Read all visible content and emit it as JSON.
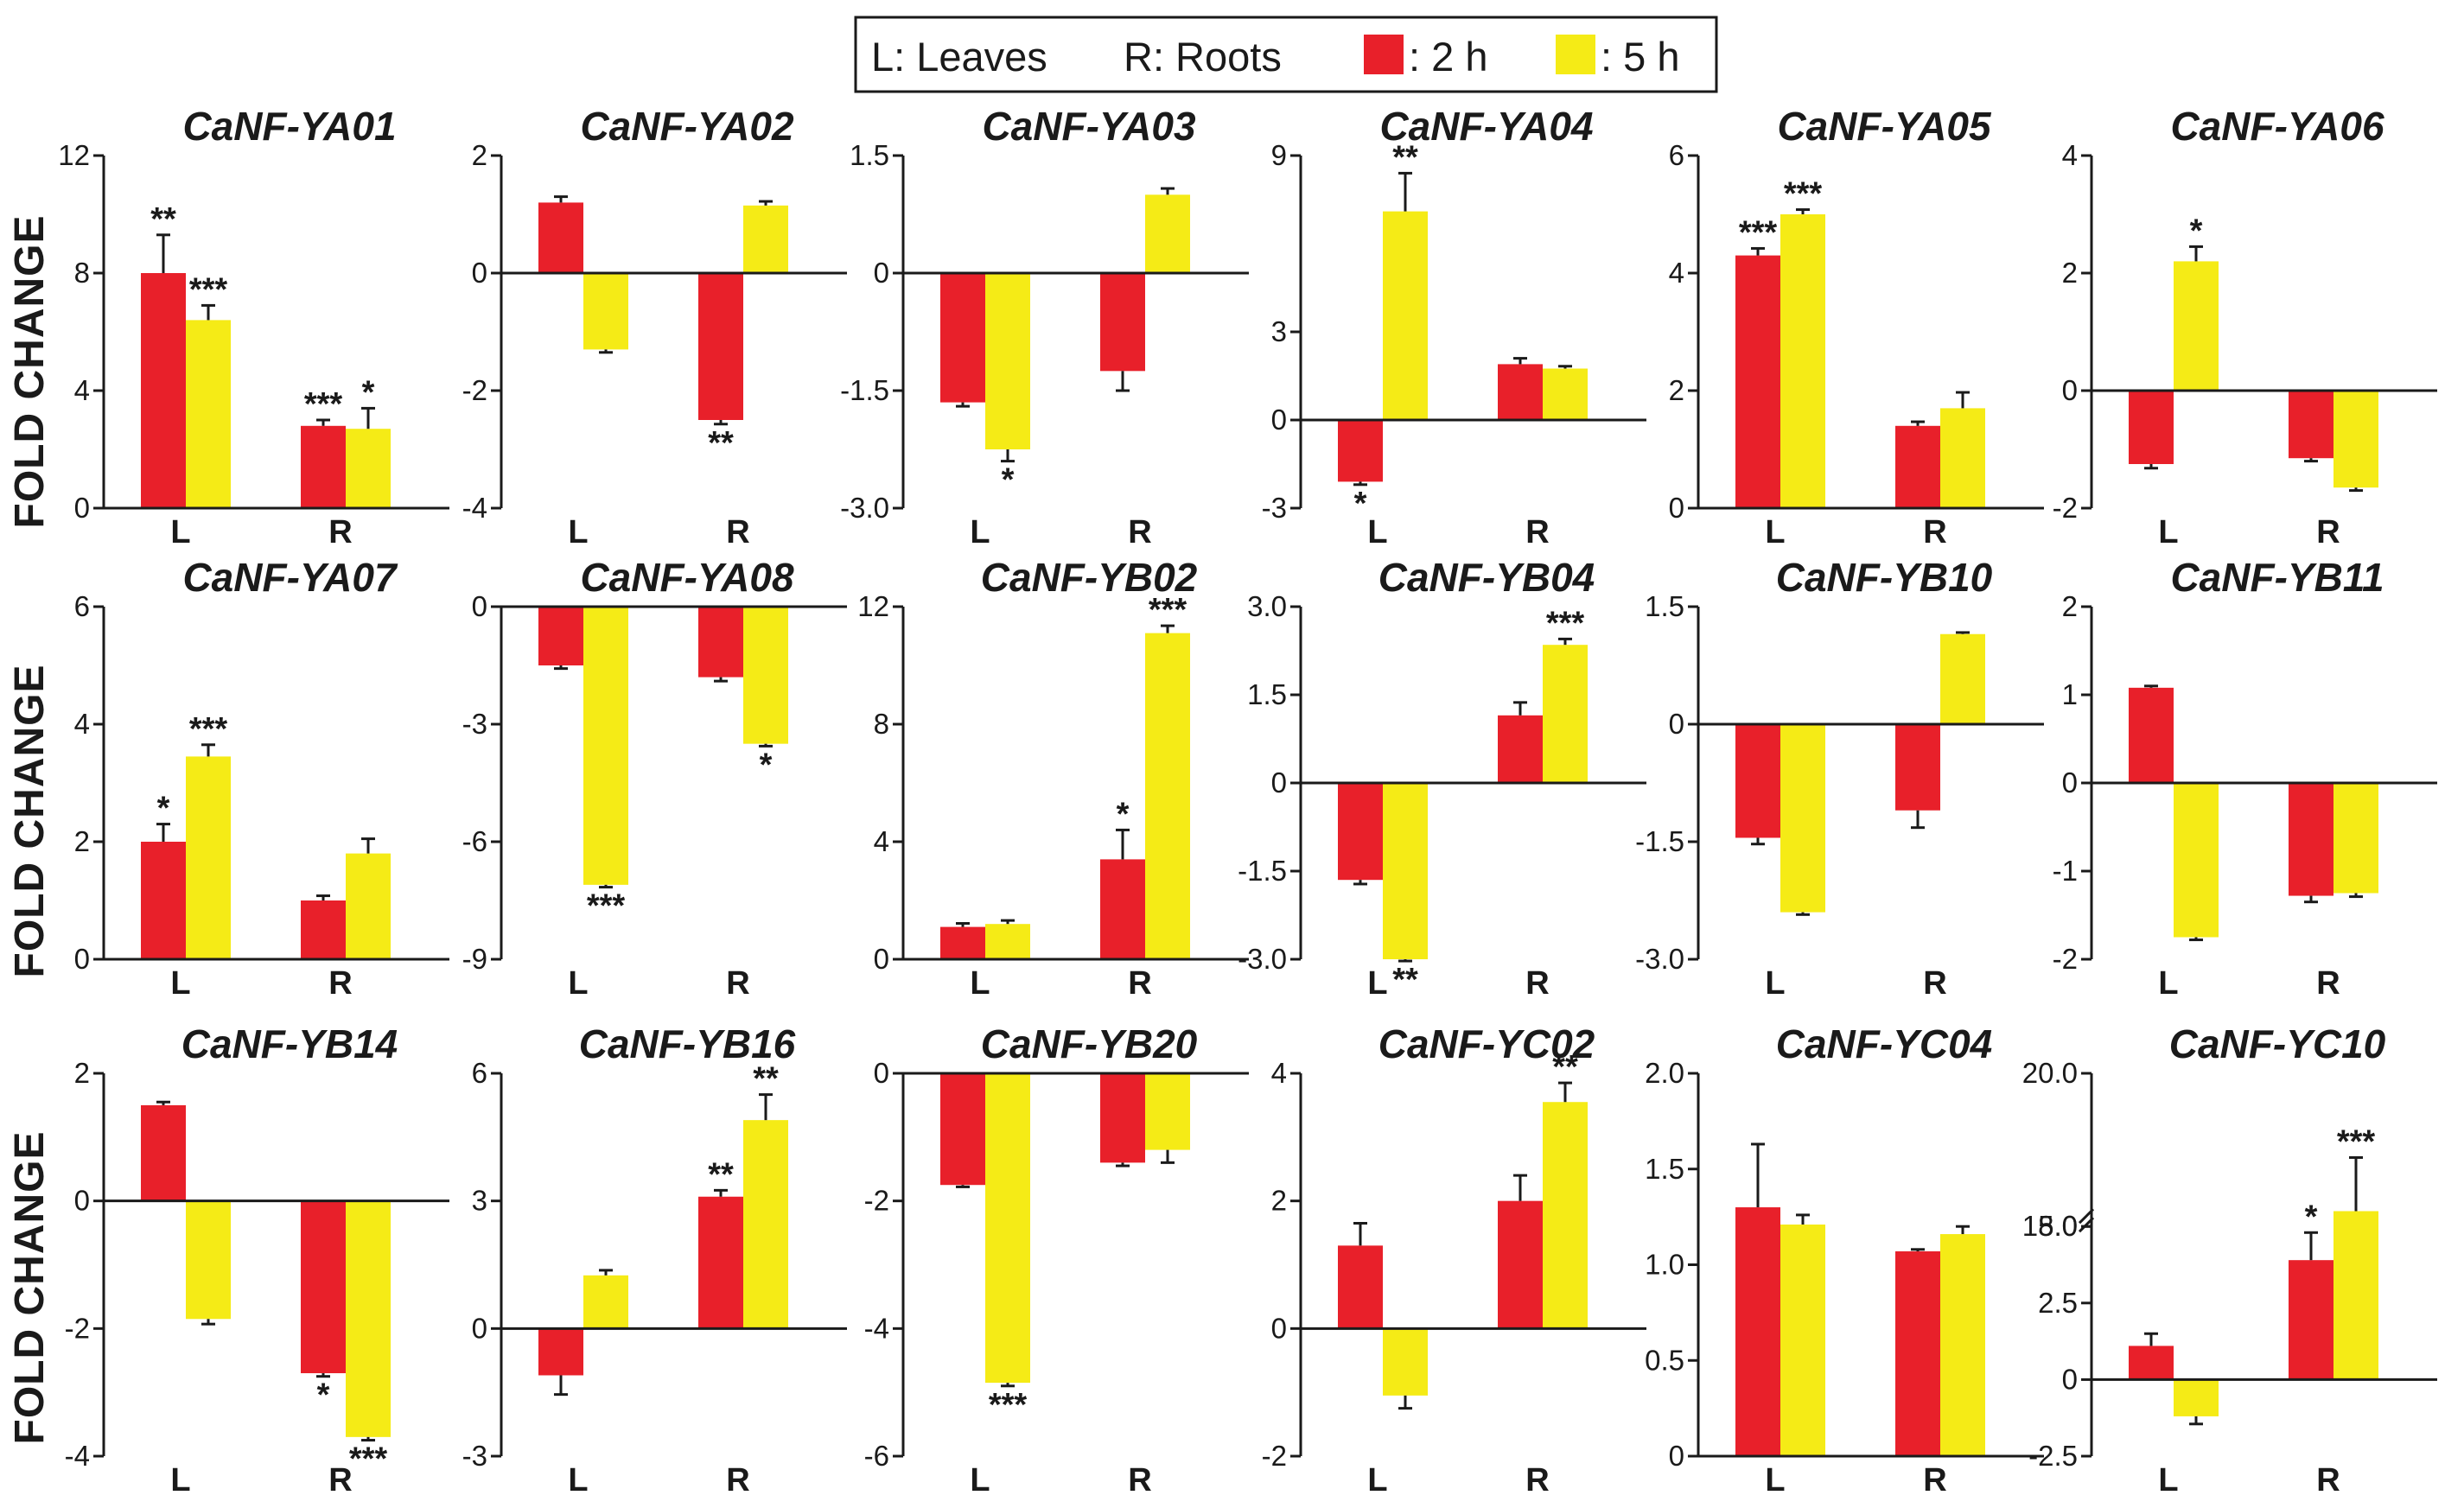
{
  "legend": {
    "leaves": "L: Leaves",
    "roots": "R: Roots",
    "series_2h": ": 2 h",
    "series_5h": ": 5 h"
  },
  "ylabel": "FOLD CHANGE",
  "colors": {
    "h2": "#e8202a",
    "h5": "#f5eb16"
  },
  "chart_data": [
    {
      "type": "bar",
      "title": "CaNF-YA01",
      "categories": [
        "L",
        "R"
      ],
      "ylim": [
        0,
        12
      ],
      "ticks": [
        "0",
        "4",
        "8",
        "12"
      ],
      "series": [
        {
          "name": "2 h",
          "values": [
            8.0,
            2.8
          ],
          "errors": [
            1.3,
            0.2
          ],
          "sig": [
            "**",
            "***"
          ]
        },
        {
          "name": "5 h",
          "values": [
            6.4,
            2.7
          ],
          "errors": [
            0.5,
            0.7
          ],
          "sig": [
            "***",
            "*"
          ]
        }
      ]
    },
    {
      "type": "bar",
      "title": "CaNF-YA02",
      "categories": [
        "L",
        "R"
      ],
      "ylim": [
        -4,
        2
      ],
      "ticks": [
        "-4",
        "-2",
        "0",
        "2"
      ],
      "series": [
        {
          "name": "2 h",
          "values": [
            1.2,
            -2.5
          ],
          "errors": [
            0.1,
            0.07
          ],
          "sig": [
            "",
            "**"
          ]
        },
        {
          "name": "5 h",
          "values": [
            -1.3,
            1.15
          ],
          "errors": [
            0.05,
            0.07
          ],
          "sig": [
            "",
            ""
          ]
        }
      ]
    },
    {
      "type": "bar",
      "title": "CaNF-YA03",
      "categories": [
        "L",
        "R"
      ],
      "ylim": [
        -3,
        1.5
      ],
      "ticks": [
        "-3.0",
        "-1.5",
        "0",
        "1.5"
      ],
      "series": [
        {
          "name": "2 h",
          "values": [
            -1.65,
            -1.25
          ],
          "errors": [
            0.05,
            0.25
          ],
          "sig": [
            "",
            ""
          ]
        },
        {
          "name": "5 h",
          "values": [
            -2.25,
            1.0
          ],
          "errors": [
            0.15,
            0.08
          ],
          "sig": [
            "*",
            ""
          ]
        }
      ]
    },
    {
      "type": "bar",
      "title": "CaNF-YA04",
      "categories": [
        "L",
        "R"
      ],
      "ylim": [
        -3,
        9
      ],
      "ticks": [
        "-3",
        "0",
        "3",
        "9"
      ],
      "series": [
        {
          "name": "2 h",
          "values": [
            -2.1,
            1.9
          ],
          "errors": [
            0.1,
            0.2
          ],
          "sig": [
            "*",
            ""
          ]
        },
        {
          "name": "5 h",
          "values": [
            7.1,
            1.75
          ],
          "errors": [
            1.3,
            0.08
          ],
          "sig": [
            "**",
            ""
          ]
        }
      ]
    },
    {
      "type": "bar",
      "title": "CaNF-YA05",
      "categories": [
        "L",
        "R"
      ],
      "ylim": [
        0,
        6
      ],
      "ticks": [
        "0",
        "2",
        "4",
        "6"
      ],
      "series": [
        {
          "name": "2 h",
          "values": [
            4.3,
            1.4
          ],
          "errors": [
            0.12,
            0.07
          ],
          "sig": [
            "***",
            ""
          ]
        },
        {
          "name": "5 h",
          "values": [
            5.0,
            1.7
          ],
          "errors": [
            0.08,
            0.27
          ],
          "sig": [
            "***",
            ""
          ]
        }
      ]
    },
    {
      "type": "bar",
      "title": "CaNF-YA06",
      "categories": [
        "L",
        "R"
      ],
      "ylim": [
        -2,
        4
      ],
      "ticks": [
        "-2",
        "0",
        "2",
        "4"
      ],
      "series": [
        {
          "name": "2 h",
          "values": [
            -1.25,
            -1.15
          ],
          "errors": [
            0.07,
            0.05
          ],
          "sig": [
            "",
            ""
          ]
        },
        {
          "name": "5 h",
          "values": [
            2.2,
            -1.65
          ],
          "errors": [
            0.25,
            0.05
          ],
          "sig": [
            "*",
            ""
          ]
        }
      ]
    },
    {
      "type": "bar",
      "title": "CaNF-YA07",
      "categories": [
        "L",
        "R"
      ],
      "ylim": [
        0,
        6
      ],
      "ticks": [
        "0",
        "2",
        "4",
        "6"
      ],
      "series": [
        {
          "name": "2 h",
          "values": [
            2.0,
            1.0
          ],
          "errors": [
            0.3,
            0.08
          ],
          "sig": [
            "*",
            ""
          ]
        },
        {
          "name": "5 h",
          "values": [
            3.45,
            1.8
          ],
          "errors": [
            0.2,
            0.25
          ],
          "sig": [
            "***",
            ""
          ]
        }
      ]
    },
    {
      "type": "bar",
      "title": "CaNF-YA08",
      "categories": [
        "L",
        "R"
      ],
      "ylim": [
        -9,
        0
      ],
      "ticks": [
        "-9",
        "-6",
        "-3",
        "0"
      ],
      "series": [
        {
          "name": "2 h",
          "values": [
            -1.5,
            -1.8
          ],
          "errors": [
            0.08,
            0.1
          ],
          "sig": [
            "",
            ""
          ]
        },
        {
          "name": "5 h",
          "values": [
            -7.1,
            -3.5
          ],
          "errors": [
            0.06,
            0.06
          ],
          "sig": [
            "***",
            "*"
          ]
        }
      ]
    },
    {
      "type": "bar",
      "title": "CaNF-YB02",
      "categories": [
        "L",
        "R"
      ],
      "ylim": [
        0,
        12
      ],
      "ticks": [
        "0",
        "4",
        "8",
        "12"
      ],
      "series": [
        {
          "name": "2 h",
          "values": [
            1.1,
            3.4
          ],
          "errors": [
            0.12,
            1.0
          ],
          "sig": [
            "",
            "*"
          ]
        },
        {
          "name": "5 h",
          "values": [
            1.2,
            11.1
          ],
          "errors": [
            0.12,
            0.25
          ],
          "sig": [
            "",
            "***"
          ]
        }
      ]
    },
    {
      "type": "bar",
      "title": "CaNF-YB04",
      "categories": [
        "L",
        "R"
      ],
      "ylim": [
        -3,
        3
      ],
      "ticks": [
        "-3.0",
        "-1.5",
        "0",
        "1.5",
        "3.0"
      ],
      "series": [
        {
          "name": "2 h",
          "values": [
            -1.65,
            1.15
          ],
          "errors": [
            0.07,
            0.22
          ],
          "sig": [
            "",
            ""
          ]
        },
        {
          "name": "5 h",
          "values": [
            -3.0,
            2.35
          ],
          "errors": [
            0.03,
            0.1
          ],
          "sig": [
            "**",
            "***"
          ]
        }
      ]
    },
    {
      "type": "bar",
      "title": "CaNF-YB10",
      "categories": [
        "L",
        "R"
      ],
      "ylim": [
        -3,
        1.5
      ],
      "ticks": [
        "-3.0",
        "-1.5",
        "0",
        "1.5"
      ],
      "series": [
        {
          "name": "2 h",
          "values": [
            -1.45,
            -1.1
          ],
          "errors": [
            0.08,
            0.22
          ],
          "sig": [
            "",
            ""
          ]
        },
        {
          "name": "5 h",
          "values": [
            -2.4,
            1.15
          ],
          "errors": [
            0.03,
            0.02
          ],
          "sig": [
            "",
            ""
          ]
        }
      ]
    },
    {
      "type": "bar",
      "title": "CaNF-YB11",
      "categories": [
        "L",
        "R"
      ],
      "ylim": [
        -2,
        2
      ],
      "ticks": [
        "-2",
        "-1",
        "0",
        "1",
        "2"
      ],
      "series": [
        {
          "name": "2 h",
          "values": [
            1.08,
            -1.28
          ],
          "errors": [
            0.02,
            0.07
          ],
          "sig": [
            "",
            ""
          ]
        },
        {
          "name": "5 h",
          "values": [
            -1.75,
            -1.25
          ],
          "errors": [
            0.03,
            0.04
          ],
          "sig": [
            "",
            ""
          ]
        }
      ]
    },
    {
      "type": "bar",
      "title": "CaNF-YB14",
      "categories": [
        "L",
        "R"
      ],
      "ylim": [
        -4,
        2
      ],
      "ticks": [
        "-4",
        "-2",
        "0",
        "2"
      ],
      "series": [
        {
          "name": "2 h",
          "values": [
            1.5,
            -2.7
          ],
          "errors": [
            0.05,
            0.05
          ],
          "sig": [
            "",
            "*"
          ]
        },
        {
          "name": "5 h",
          "values": [
            -1.85,
            -3.7
          ],
          "errors": [
            0.08,
            0.05
          ],
          "sig": [
            "",
            "***"
          ]
        }
      ]
    },
    {
      "type": "bar",
      "title": "CaNF-YB16",
      "categories": [
        "L",
        "R"
      ],
      "ylim": [
        -3,
        6
      ],
      "ticks": [
        "-3",
        "0",
        "3",
        "6"
      ],
      "series": [
        {
          "name": "2 h",
          "values": [
            -1.1,
            3.1
          ],
          "errors": [
            0.45,
            0.15
          ],
          "sig": [
            "",
            "**"
          ]
        },
        {
          "name": "5 h",
          "values": [
            1.25,
            4.9
          ],
          "errors": [
            0.12,
            0.6
          ],
          "sig": [
            "",
            "**"
          ]
        }
      ]
    },
    {
      "type": "bar",
      "title": "CaNF-YB20",
      "categories": [
        "L",
        "R"
      ],
      "ylim": [
        -6,
        0
      ],
      "ticks": [
        "-6",
        "-4",
        "-2",
        "0"
      ],
      "series": [
        {
          "name": "2 h",
          "values": [
            -1.75,
            -1.4
          ],
          "errors": [
            0.03,
            0.05
          ],
          "sig": [
            "",
            ""
          ]
        },
        {
          "name": "5 h",
          "values": [
            -4.85,
            -1.2
          ],
          "errors": [
            0.05,
            0.2
          ],
          "sig": [
            "***",
            ""
          ]
        }
      ]
    },
    {
      "type": "bar",
      "title": "CaNF-YC02",
      "categories": [
        "L",
        "R"
      ],
      "ylim": [
        -2,
        4
      ],
      "ticks": [
        "-2",
        "0",
        "2",
        "4"
      ],
      "series": [
        {
          "name": "2 h",
          "values": [
            1.3,
            2.0
          ],
          "errors": [
            0.35,
            0.4
          ],
          "sig": [
            "",
            ""
          ]
        },
        {
          "name": "5 h",
          "values": [
            -1.05,
            3.55
          ],
          "errors": [
            0.2,
            0.3
          ],
          "sig": [
            "",
            "**"
          ]
        }
      ]
    },
    {
      "type": "bar",
      "title": "CaNF-YC04",
      "categories": [
        "L",
        "R"
      ],
      "ylim": [
        0,
        2
      ],
      "ticks": [
        "0",
        "0.5",
        "1.0",
        "1.5",
        "2.0"
      ],
      "series": [
        {
          "name": "2 h",
          "values": [
            1.3,
            1.07
          ],
          "errors": [
            0.33,
            0.01
          ],
          "sig": [
            "",
            ""
          ]
        },
        {
          "name": "5 h",
          "values": [
            1.21,
            1.16
          ],
          "errors": [
            0.05,
            0.04
          ],
          "sig": [
            "",
            ""
          ]
        }
      ]
    },
    {
      "type": "bar",
      "title": "CaNF-YC10",
      "categories": [
        "L",
        "R"
      ],
      "ylim": [
        -2.5,
        20
      ],
      "axis_break": [
        5,
        18
      ],
      "ticks": [
        "-2.5",
        "0",
        "2.5",
        "5.0",
        "18.0",
        "20.0"
      ],
      "series": [
        {
          "name": "2 h",
          "values": [
            1.1,
            3.9
          ],
          "errors": [
            0.4,
            0.9
          ],
          "sig": [
            "",
            "*"
          ]
        },
        {
          "name": "5 h",
          "values": [
            -1.2,
            18.2
          ],
          "errors": [
            0.25,
            0.7
          ],
          "sig": [
            "",
            "***"
          ]
        }
      ]
    }
  ]
}
